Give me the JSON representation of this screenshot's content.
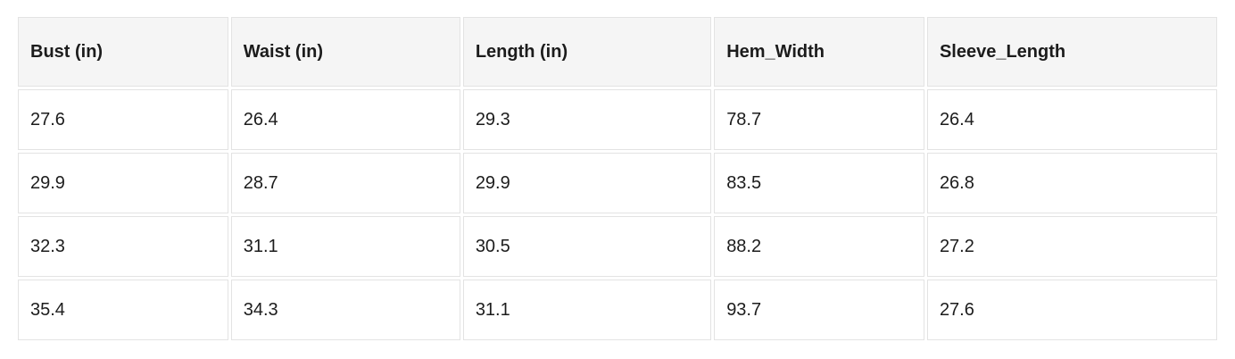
{
  "table": {
    "columns": [
      "Bust (in)",
      "Waist (in)",
      "Length (in)",
      "Hem_Width",
      "Sleeve_Length"
    ],
    "rows": [
      [
        "27.6",
        "26.4",
        "29.3",
        "78.7",
        "26.4"
      ],
      [
        "29.9",
        "28.7",
        "29.9",
        "83.5",
        "26.8"
      ],
      [
        "32.3",
        "31.1",
        "30.5",
        "88.2",
        "27.2"
      ],
      [
        "35.4",
        "34.3",
        "31.1",
        "93.7",
        "27.6"
      ]
    ]
  },
  "chart_data": {
    "type": "table",
    "title": "",
    "columns": [
      "Bust (in)",
      "Waist (in)",
      "Length (in)",
      "Hem_Width",
      "Sleeve_Length"
    ],
    "rows": [
      [
        27.6,
        26.4,
        29.3,
        78.7,
        26.4
      ],
      [
        29.9,
        28.7,
        29.9,
        83.5,
        26.8
      ],
      [
        32.3,
        31.1,
        30.5,
        88.2,
        27.2
      ],
      [
        35.4,
        34.3,
        31.1,
        93.7,
        27.6
      ]
    ]
  },
  "colors": {
    "header_bg": "#f5f5f5",
    "cell_border": "#e3e3e3",
    "text": "#1c1c1c",
    "page_bg": "#ffffff"
  }
}
